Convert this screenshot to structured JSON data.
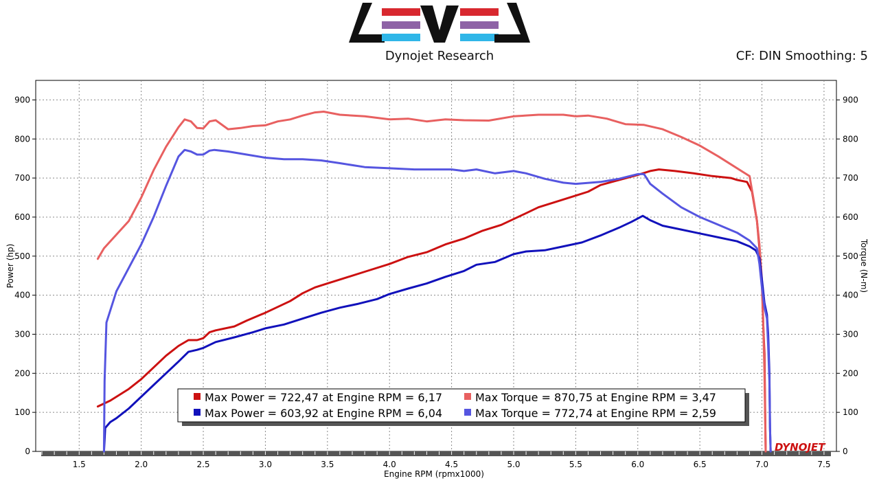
{
  "header": {
    "brand_name": "Dynojet Research",
    "cf_info": "CF: DIN Smoothing: 5",
    "logo_text": "LEVEL"
  },
  "colors": {
    "power_run1": "#cc1111",
    "torque_run1": "#e86060",
    "power_run2": "#1111bb",
    "torque_run2": "#5555e0",
    "plot_bg": "#ffffff",
    "grid": "#888888",
    "axis": "#000000"
  },
  "chart_data": {
    "type": "line",
    "title": "",
    "xlabel": "Engine RPM (rpmx1000)",
    "ylabel": "Power (hp)",
    "ylabel_right": "Torque (N-m)",
    "xlim": [
      1.15,
      7.6
    ],
    "ylim": [
      0,
      950
    ],
    "ylim_right": [
      0,
      950
    ],
    "x_ticks": [
      "1.5",
      "2.0",
      "2.5",
      "3.0",
      "3.5",
      "4.0",
      "4.5",
      "5.0",
      "5.5",
      "6.0",
      "6.5",
      "7.0",
      "7.5"
    ],
    "y_ticks": [
      "0",
      "100",
      "200",
      "300",
      "400",
      "500",
      "600",
      "700",
      "800",
      "900"
    ],
    "y_ticks_right": [
      "0",
      "100",
      "200",
      "300",
      "400",
      "500",
      "600",
      "700",
      "800",
      "900"
    ],
    "grid": true,
    "legend_position": "bottom-center",
    "watermark": "DYNOJET",
    "legend": [
      {
        "label": "Max Power = 722,47 at Engine RPM = 6,17",
        "series": "power_run1"
      },
      {
        "label": "Max Torque = 870,75 at Engine RPM = 3,47",
        "series": "torque_run1"
      },
      {
        "label": "Max Power = 603,92 at Engine RPM = 6,04",
        "series": "power_run2"
      },
      {
        "label": "Max Torque = 772,74 at Engine RPM = 2,59",
        "series": "torque_run2"
      }
    ],
    "series": [
      {
        "name": "power_run1",
        "axis": "left",
        "points": [
          [
            1.65,
            115
          ],
          [
            1.75,
            130
          ],
          [
            1.9,
            160
          ],
          [
            2.0,
            185
          ],
          [
            2.1,
            215
          ],
          [
            2.2,
            245
          ],
          [
            2.3,
            270
          ],
          [
            2.38,
            285
          ],
          [
            2.45,
            285
          ],
          [
            2.5,
            290
          ],
          [
            2.55,
            305
          ],
          [
            2.6,
            310
          ],
          [
            2.75,
            320
          ],
          [
            2.85,
            335
          ],
          [
            3.0,
            355
          ],
          [
            3.1,
            370
          ],
          [
            3.2,
            385
          ],
          [
            3.3,
            405
          ],
          [
            3.4,
            420
          ],
          [
            3.5,
            430
          ],
          [
            3.65,
            445
          ],
          [
            3.8,
            460
          ],
          [
            4.0,
            480
          ],
          [
            4.15,
            498
          ],
          [
            4.3,
            510
          ],
          [
            4.45,
            530
          ],
          [
            4.6,
            545
          ],
          [
            4.75,
            565
          ],
          [
            4.9,
            580
          ],
          [
            5.0,
            595
          ],
          [
            5.1,
            610
          ],
          [
            5.2,
            625
          ],
          [
            5.35,
            640
          ],
          [
            5.5,
            655
          ],
          [
            5.6,
            665
          ],
          [
            5.7,
            682
          ],
          [
            5.85,
            695
          ],
          [
            6.0,
            708
          ],
          [
            6.1,
            718
          ],
          [
            6.17,
            722
          ],
          [
            6.3,
            718
          ],
          [
            6.45,
            712
          ],
          [
            6.6,
            705
          ],
          [
            6.75,
            700
          ],
          [
            6.8,
            695
          ],
          [
            6.88,
            690
          ],
          [
            6.92,
            665
          ],
          [
            6.96,
            590
          ],
          [
            6.98,
            520
          ],
          [
            7.0,
            430
          ],
          [
            7.01,
            330
          ],
          [
            7.02,
            250
          ],
          [
            7.025,
            120
          ],
          [
            7.03,
            0
          ]
        ]
      },
      {
        "name": "torque_run1",
        "axis": "right",
        "points": [
          [
            1.65,
            493
          ],
          [
            1.7,
            520
          ],
          [
            1.8,
            555
          ],
          [
            1.9,
            590
          ],
          [
            2.0,
            650
          ],
          [
            2.1,
            720
          ],
          [
            2.2,
            780
          ],
          [
            2.3,
            830
          ],
          [
            2.35,
            850
          ],
          [
            2.4,
            845
          ],
          [
            2.45,
            828
          ],
          [
            2.5,
            827
          ],
          [
            2.55,
            845
          ],
          [
            2.6,
            848
          ],
          [
            2.7,
            825
          ],
          [
            2.8,
            828
          ],
          [
            2.9,
            833
          ],
          [
            3.0,
            835
          ],
          [
            3.1,
            845
          ],
          [
            3.2,
            850
          ],
          [
            3.3,
            860
          ],
          [
            3.4,
            868
          ],
          [
            3.47,
            870
          ],
          [
            3.6,
            862
          ],
          [
            3.8,
            858
          ],
          [
            4.0,
            850
          ],
          [
            4.15,
            852
          ],
          [
            4.3,
            845
          ],
          [
            4.45,
            850
          ],
          [
            4.6,
            848
          ],
          [
            4.8,
            847
          ],
          [
            5.0,
            858
          ],
          [
            5.2,
            862
          ],
          [
            5.4,
            862
          ],
          [
            5.5,
            858
          ],
          [
            5.6,
            860
          ],
          [
            5.75,
            852
          ],
          [
            5.9,
            838
          ],
          [
            6.05,
            836
          ],
          [
            6.2,
            825
          ],
          [
            6.35,
            805
          ],
          [
            6.5,
            783
          ],
          [
            6.65,
            755
          ],
          [
            6.75,
            735
          ],
          [
            6.85,
            715
          ],
          [
            6.9,
            705
          ],
          [
            6.93,
            650
          ],
          [
            6.96,
            590
          ],
          [
            6.98,
            530
          ],
          [
            7.0,
            440
          ],
          [
            7.01,
            340
          ],
          [
            7.02,
            200
          ],
          [
            7.025,
            100
          ],
          [
            7.03,
            0
          ]
        ]
      },
      {
        "name": "power_run2",
        "axis": "left",
        "points": [
          [
            1.7,
            0
          ],
          [
            1.71,
            60
          ],
          [
            1.75,
            75
          ],
          [
            1.8,
            85
          ],
          [
            1.9,
            110
          ],
          [
            2.0,
            140
          ],
          [
            2.1,
            170
          ],
          [
            2.2,
            200
          ],
          [
            2.3,
            230
          ],
          [
            2.38,
            255
          ],
          [
            2.45,
            260
          ],
          [
            2.5,
            265
          ],
          [
            2.6,
            280
          ],
          [
            2.75,
            292
          ],
          [
            2.9,
            305
          ],
          [
            3.0,
            315
          ],
          [
            3.15,
            325
          ],
          [
            3.3,
            340
          ],
          [
            3.45,
            355
          ],
          [
            3.6,
            368
          ],
          [
            3.75,
            378
          ],
          [
            3.9,
            390
          ],
          [
            4.0,
            403
          ],
          [
            4.15,
            417
          ],
          [
            4.3,
            430
          ],
          [
            4.45,
            447
          ],
          [
            4.6,
            462
          ],
          [
            4.7,
            478
          ],
          [
            4.85,
            485
          ],
          [
            5.0,
            505
          ],
          [
            5.1,
            512
          ],
          [
            5.25,
            515
          ],
          [
            5.4,
            525
          ],
          [
            5.55,
            535
          ],
          [
            5.7,
            553
          ],
          [
            5.85,
            573
          ],
          [
            5.95,
            588
          ],
          [
            6.04,
            603
          ],
          [
            6.1,
            592
          ],
          [
            6.2,
            578
          ],
          [
            6.35,
            568
          ],
          [
            6.5,
            558
          ],
          [
            6.65,
            548
          ],
          [
            6.8,
            538
          ],
          [
            6.9,
            525
          ],
          [
            6.95,
            515
          ],
          [
            6.98,
            495
          ],
          [
            7.0,
            440
          ],
          [
            7.02,
            380
          ],
          [
            7.04,
            350
          ],
          [
            7.05,
            300
          ],
          [
            7.06,
            200
          ],
          [
            7.065,
            60
          ],
          [
            7.07,
            0
          ]
        ]
      },
      {
        "name": "torque_run2",
        "axis": "right",
        "points": [
          [
            1.7,
            0
          ],
          [
            1.705,
            180
          ],
          [
            1.72,
            330
          ],
          [
            1.8,
            410
          ],
          [
            1.9,
            470
          ],
          [
            2.0,
            530
          ],
          [
            2.1,
            600
          ],
          [
            2.2,
            680
          ],
          [
            2.3,
            755
          ],
          [
            2.35,
            772
          ],
          [
            2.4,
            768
          ],
          [
            2.45,
            760
          ],
          [
            2.5,
            760
          ],
          [
            2.55,
            770
          ],
          [
            2.59,
            772
          ],
          [
            2.7,
            768
          ],
          [
            2.85,
            760
          ],
          [
            3.0,
            752
          ],
          [
            3.15,
            748
          ],
          [
            3.3,
            748
          ],
          [
            3.45,
            745
          ],
          [
            3.6,
            738
          ],
          [
            3.8,
            728
          ],
          [
            4.0,
            725
          ],
          [
            4.2,
            722
          ],
          [
            4.4,
            722
          ],
          [
            4.5,
            722
          ],
          [
            4.6,
            718
          ],
          [
            4.7,
            722
          ],
          [
            4.85,
            712
          ],
          [
            5.0,
            718
          ],
          [
            5.1,
            712
          ],
          [
            5.25,
            698
          ],
          [
            5.4,
            688
          ],
          [
            5.5,
            685
          ],
          [
            5.7,
            690
          ],
          [
            5.85,
            698
          ],
          [
            6.0,
            710
          ],
          [
            6.05,
            710
          ],
          [
            6.1,
            685
          ],
          [
            6.2,
            660
          ],
          [
            6.35,
            625
          ],
          [
            6.5,
            600
          ],
          [
            6.65,
            580
          ],
          [
            6.8,
            560
          ],
          [
            6.9,
            540
          ],
          [
            6.96,
            520
          ],
          [
            6.98,
            480
          ],
          [
            7.0,
            420
          ],
          [
            7.02,
            370
          ],
          [
            7.04,
            340
          ],
          [
            7.05,
            270
          ],
          [
            7.06,
            180
          ],
          [
            7.065,
            60
          ],
          [
            7.07,
            0
          ]
        ]
      }
    ]
  }
}
